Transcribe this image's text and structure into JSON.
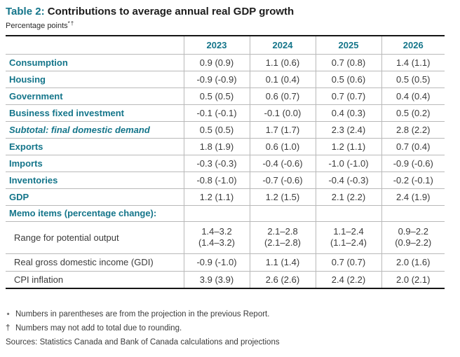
{
  "colors": {
    "accent_teal": "#14758A",
    "rule_black": "#151515",
    "grid_gray": "#b9b9b9",
    "body_text": "#3b3b3b"
  },
  "heading": {
    "table_label": "Table 2:",
    "title": "Contributions to average annual real GDP growth",
    "subtitle_text": "Percentage points",
    "subtitle_marks": "*†"
  },
  "table": {
    "col_headers": [
      "2023",
      "2024",
      "2025",
      "2026"
    ],
    "rows": [
      {
        "label": "Consumption",
        "values": [
          "0.9 (0.9)",
          "1.1 (0.6)",
          "0.7 (0.8)",
          "1.4 (1.1)"
        ]
      },
      {
        "label": "Housing",
        "values": [
          "-0.9 (-0.9)",
          "0.1 (0.4)",
          "0.5 (0.6)",
          "0.5 (0.5)"
        ]
      },
      {
        "label": "Government",
        "values": [
          "0.5 (0.5)",
          "0.6 (0.7)",
          "0.7 (0.7)",
          "0.4 (0.4)"
        ]
      },
      {
        "label": "Business fixed investment",
        "values": [
          "-0.1 (-0.1)",
          "-0.1 (0.0)",
          "0.4 (0.3)",
          "0.5 (0.2)"
        ]
      },
      {
        "label": "Subtotal: final domestic demand",
        "values": [
          "0.5 (0.5)",
          "1.7 (1.7)",
          "2.3 (2.4)",
          "2.8 (2.2)"
        ]
      },
      {
        "label": "Exports",
        "values": [
          "1.8 (1.9)",
          "0.6 (1.0)",
          "1.2 (1.1)",
          "0.7 (0.4)"
        ]
      },
      {
        "label": "Imports",
        "values": [
          "-0.3 (-0.3)",
          "-0.4 (-0.6)",
          "-1.0 (-1.0)",
          "-0.9 (-0.6)"
        ]
      },
      {
        "label": "Inventories",
        "values": [
          "-0.8 (-1.0)",
          "-0.7 (-0.6)",
          "-0.4 (-0.3)",
          "-0.2 (-0.1)"
        ]
      },
      {
        "label": "GDP",
        "values": [
          "1.2 (1.1)",
          "1.2 (1.5)",
          "2.1 (2.2)",
          "2.4 (1.9)"
        ]
      },
      {
        "label": "Memo items (percentage change):",
        "values": [
          "",
          "",
          "",
          ""
        ]
      },
      {
        "label": "Range for potential output",
        "values": [
          "1.4–3.2\n(1.4–3.2)",
          "2.1–2.8\n(2.1–2.8)",
          "1.1–2.4\n(1.1–2.4)",
          "0.9–2.2\n(0.9–2.2)"
        ]
      },
      {
        "label": "Real gross domestic income (GDI)",
        "values": [
          "-0.9 (-1.0)",
          "1.1 (1.4)",
          "0.7 (0.7)",
          "2.0 (1.6)"
        ]
      },
      {
        "label": "CPI inflation",
        "values": [
          "3.9 (3.9)",
          "2.6 (2.6)",
          "2.4 (2.2)",
          "2.0 (2.1)"
        ]
      }
    ]
  },
  "footnotes": [
    {
      "marker": "⋆",
      "text": "Numbers in parentheses are from the projection in the previous Report."
    },
    {
      "marker": "†",
      "text": "Numbers may not add to total due to rounding."
    }
  ],
  "sources": "Sources: Statistics Canada and Bank of Canada calculations and projections"
}
